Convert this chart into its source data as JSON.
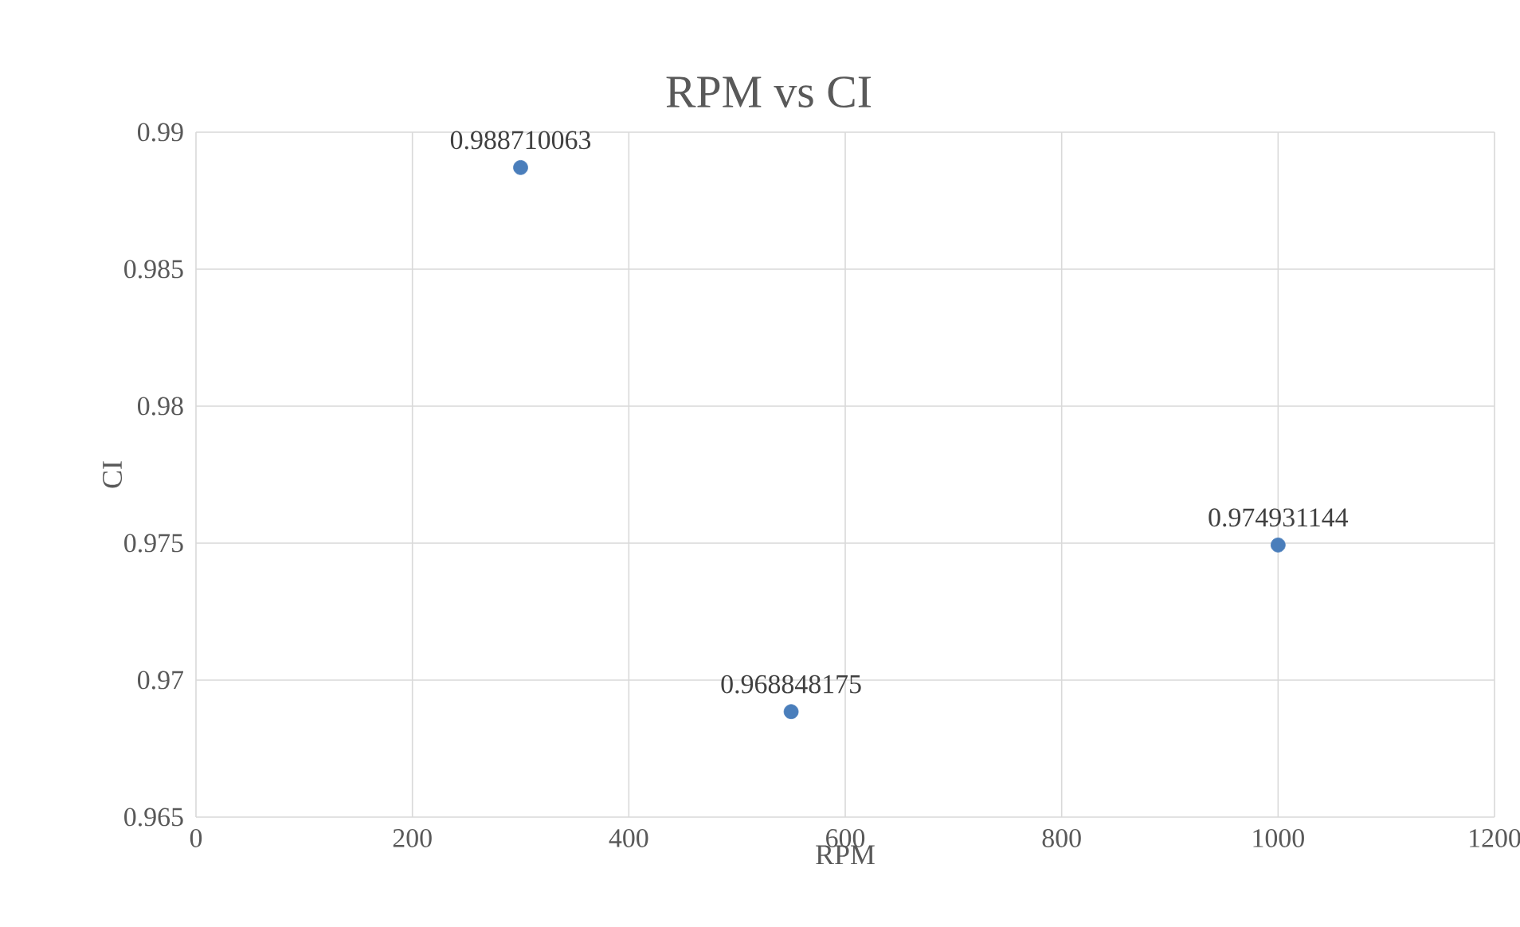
{
  "chart_data": {
    "type": "scatter",
    "title": "RPM vs CI",
    "xlabel": "RPM",
    "ylabel": "CI",
    "x": [
      300,
      550,
      1000
    ],
    "series": [
      {
        "color": "#4a7ebb",
        "values": [
          0.988710063,
          0.968848175,
          0.974931144
        ]
      }
    ],
    "xlim": [
      0,
      1200
    ],
    "xticks": [
      0,
      200,
      400,
      600,
      800,
      1000,
      1200
    ],
    "ylim": [
      0.965,
      0.99
    ],
    "yticks": [
      0.965,
      0.97,
      0.975,
      0.98,
      0.985,
      0.99
    ],
    "grid": true,
    "data_labels": true
  }
}
